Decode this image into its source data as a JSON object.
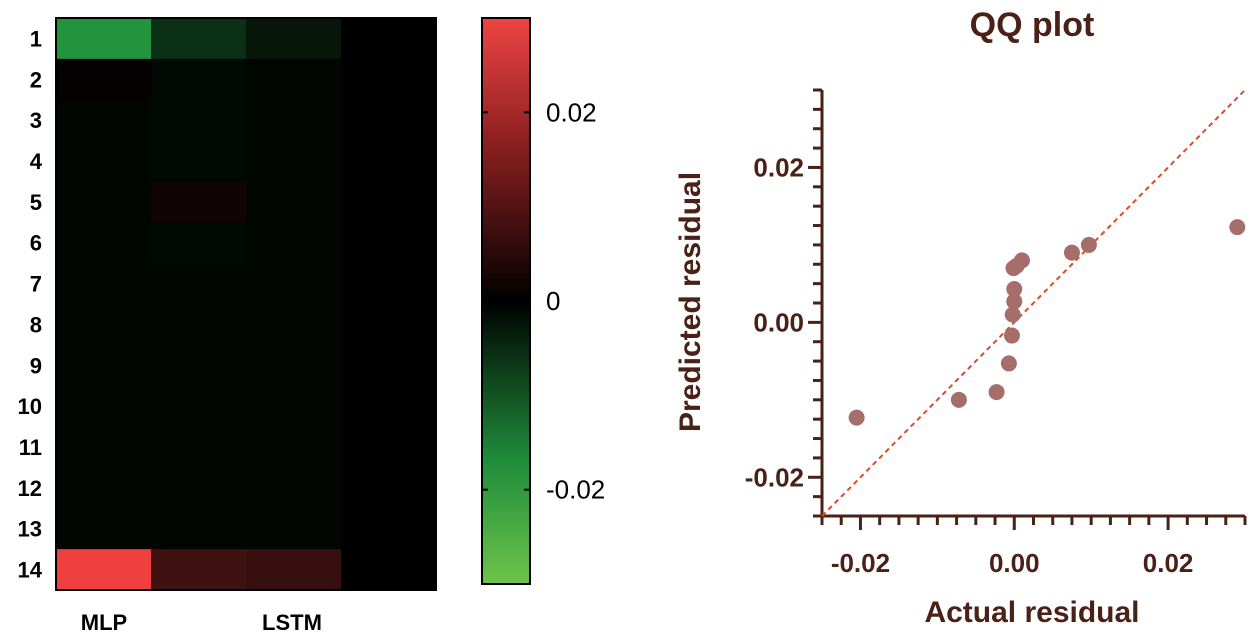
{
  "colors": {
    "positive": "#ef3f3f",
    "zero": "#000000",
    "negative_mid": "#2bb04a",
    "negative_end": "#6dc34a",
    "qq_text": "#4a2116",
    "qq_points": "#a56e6b",
    "qq_ref_line": "#dc4a2a"
  },
  "chart_data": [
    {
      "type": "heatmap",
      "rows": [
        "1",
        "2",
        "3",
        "4",
        "5",
        "6",
        "7",
        "8",
        "9",
        "10",
        "11",
        "12",
        "13",
        "14"
      ],
      "columns": [
        "MLP",
        "",
        "LSTM",
        ""
      ],
      "values": [
        [
          -0.025,
          -0.008,
          -0.004,
          0
        ],
        [
          0.0005,
          -0.0015,
          -0.001,
          0
        ],
        [
          -0.001,
          -0.0015,
          -0.001,
          0
        ],
        [
          -0.001,
          -0.0015,
          -0.001,
          0
        ],
        [
          -0.001,
          0.002,
          -0.001,
          0
        ],
        [
          -0.001,
          -0.0015,
          -0.001,
          0
        ],
        [
          -0.001,
          -0.001,
          -0.001,
          0
        ],
        [
          -0.001,
          -0.001,
          -0.001,
          0
        ],
        [
          -0.001,
          -0.001,
          -0.001,
          0
        ],
        [
          -0.001,
          -0.001,
          -0.001,
          0
        ],
        [
          -0.001,
          -0.001,
          -0.001,
          0
        ],
        [
          -0.001,
          -0.001,
          -0.001,
          0
        ],
        [
          -0.001,
          -0.001,
          -0.001,
          0
        ],
        [
          0.03,
          0.008,
          0.007,
          0
        ]
      ],
      "colorbar": {
        "range": [
          -0.03,
          0.03
        ],
        "ticks": [
          {
            "value": 0.02,
            "label": "0.02"
          },
          {
            "value": 0,
            "label": "0"
          },
          {
            "value": -0.02,
            "label": "-0.02"
          }
        ]
      }
    },
    {
      "type": "scatter",
      "title": "QQ plot",
      "xlabel": "Actual residual",
      "ylabel": "Predicted residual",
      "xlim": [
        -0.025,
        0.03
      ],
      "ylim": [
        -0.025,
        0.03
      ],
      "xticks": [
        {
          "value": -0.02,
          "label": "-0.02"
        },
        {
          "value": 0.0,
          "label": "0.00"
        },
        {
          "value": 0.02,
          "label": "0.02"
        }
      ],
      "yticks": [
        {
          "value": 0.02,
          "label": "0.02"
        },
        {
          "value": 0.0,
          "label": "0.00"
        },
        {
          "value": -0.02,
          "label": "-0.02"
        }
      ],
      "reference_line": "y = x",
      "points": [
        {
          "x": -0.0205,
          "y": -0.0123
        },
        {
          "x": -0.0072,
          "y": -0.01
        },
        {
          "x": -0.0023,
          "y": -0.009
        },
        {
          "x": -0.0007,
          "y": -0.0053
        },
        {
          "x": -0.0003,
          "y": -0.0017
        },
        {
          "x": -0.0002,
          "y": 0.001
        },
        {
          "x": 0.0,
          "y": 0.0027
        },
        {
          "x": 0.0,
          "y": 0.0043
        },
        {
          "x": -0.0001,
          "y": 0.007
        },
        {
          "x": 0.0003,
          "y": 0.0073
        },
        {
          "x": 0.001,
          "y": 0.008
        },
        {
          "x": 0.0075,
          "y": 0.009
        },
        {
          "x": 0.0097,
          "y": 0.01
        },
        {
          "x": 0.029,
          "y": 0.0123
        }
      ]
    }
  ]
}
